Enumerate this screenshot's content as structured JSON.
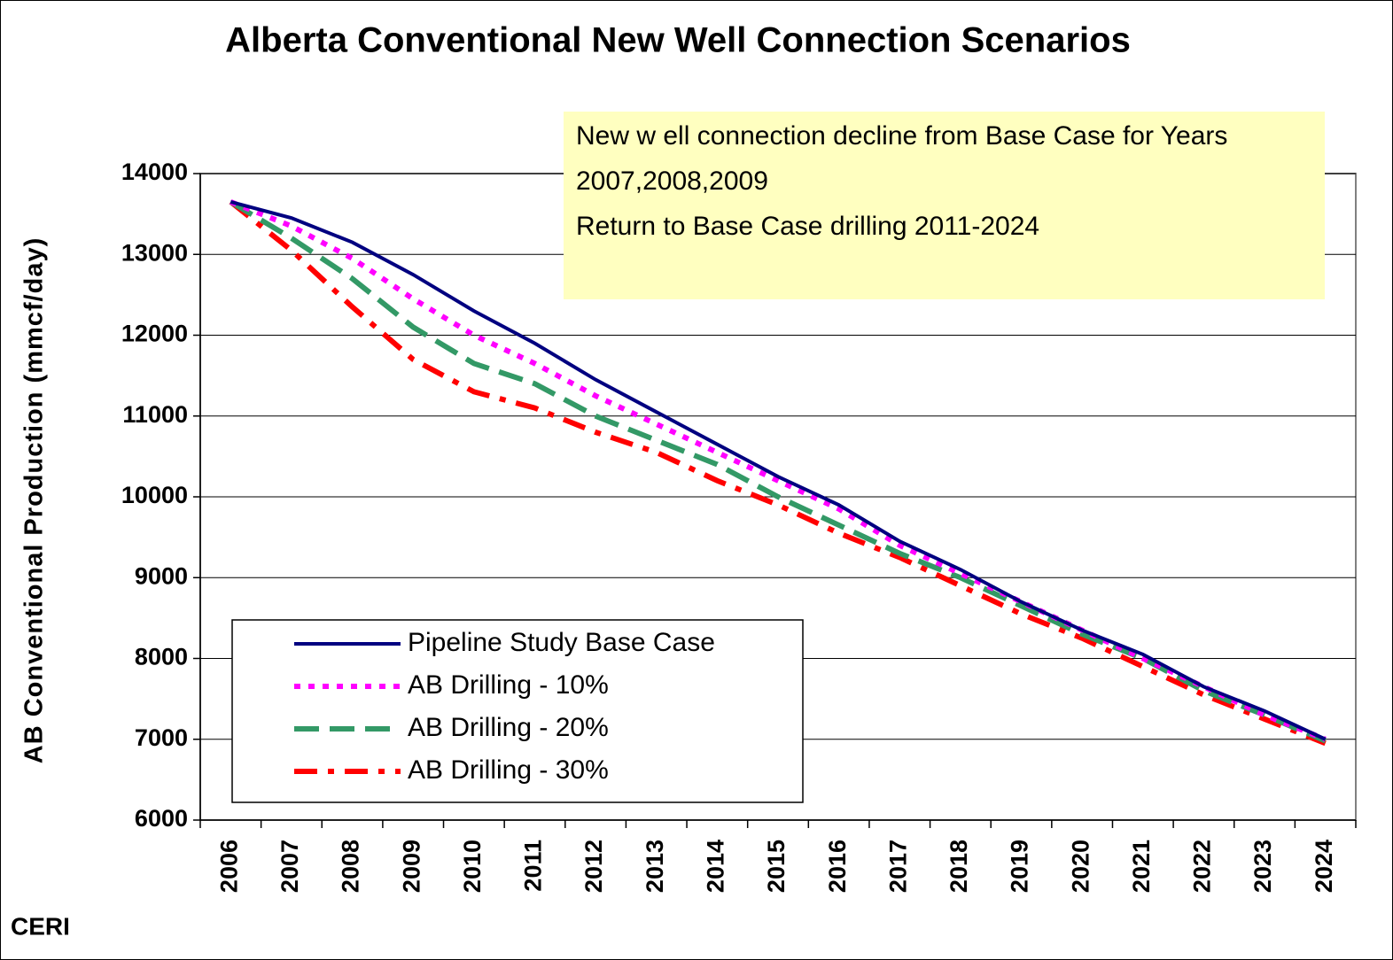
{
  "chart_data": {
    "type": "line",
    "title": "Alberta Conventional New Well Connection Scenarios",
    "y_label": "AB Conventional Production (mmcf/day)",
    "annotation": [
      "New  w ell connection decline from Base Case for Years",
      "2007,2008,2009",
      "Return to Base Case drilling 2011-2024"
    ],
    "credit": "CERI",
    "categories": [
      "2006",
      "2007",
      "2008",
      "2009",
      "2010",
      "2011",
      "2012",
      "2013",
      "2014",
      "2015",
      "2016",
      "2017",
      "2018",
      "2019",
      "2020",
      "2021",
      "2022",
      "2023",
      "2024"
    ],
    "series": [
      {
        "name": "Pipeline Study Base Case",
        "color": "#000080",
        "dash": "solid",
        "values": [
          13650,
          13450,
          13150,
          12750,
          12300,
          11900,
          11450,
          11050,
          10650,
          10250,
          9900,
          9450,
          9100,
          8700,
          8350,
          8050,
          7650,
          7350,
          7000
        ]
      },
      {
        "name": "AB Drilling - 10%",
        "color": "#ff00ff",
        "dash": "dot",
        "values": [
          13650,
          13350,
          12950,
          12450,
          12000,
          11650,
          11250,
          10900,
          10550,
          10200,
          9850,
          9400,
          9050,
          8700,
          8350,
          8000,
          7650,
          7300,
          7000
        ]
      },
      {
        "name": "AB Drilling - 20%",
        "color": "#339966",
        "dash": "dash",
        "values": [
          13650,
          13200,
          12700,
          12100,
          11650,
          11400,
          11000,
          10700,
          10400,
          10000,
          9650,
          9300,
          9000,
          8650,
          8300,
          8000,
          7600,
          7300,
          6980
        ]
      },
      {
        "name": "AB Drilling - 30%",
        "color": "#ff0000",
        "dash": "dashdot",
        "values": [
          13650,
          13050,
          12350,
          11700,
          11300,
          11100,
          10800,
          10550,
          10200,
          9900,
          9550,
          9250,
          8900,
          8550,
          8250,
          7900,
          7550,
          7250,
          6950
        ]
      }
    ],
    "ylim": [
      6000,
      14000
    ],
    "yticks": [
      6000,
      7000,
      8000,
      9000,
      10000,
      11000,
      12000,
      13000,
      14000
    ],
    "grid": true
  }
}
